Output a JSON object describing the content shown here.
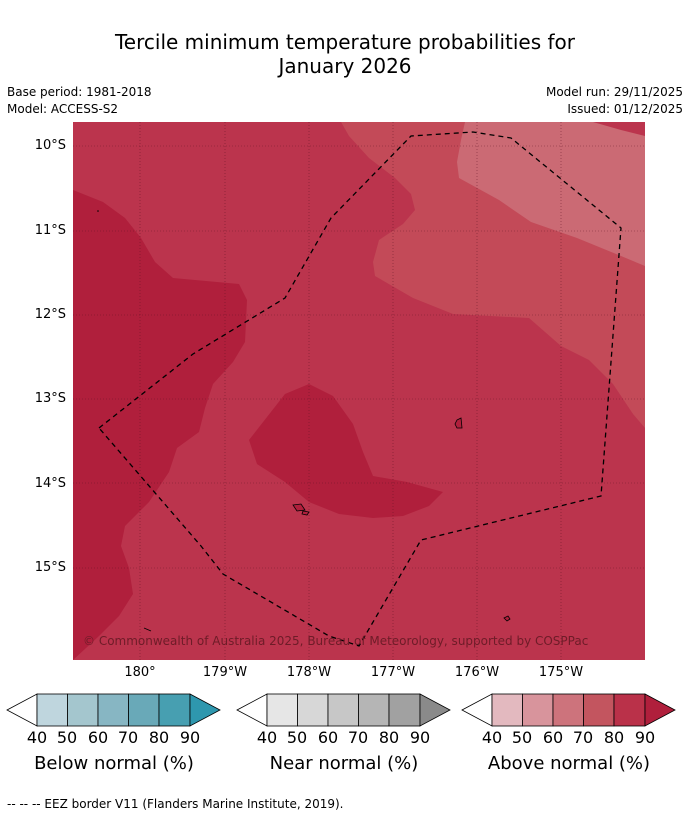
{
  "title": {
    "line1": "Tercile minimum temperature probabilities for",
    "line2": "January 2026"
  },
  "meta": {
    "base_period": "Base period: 1981-2018",
    "model": "Model: ACCESS-S2",
    "model_run": "Model run: 29/11/2025",
    "issued": "Issued: 01/12/2025"
  },
  "map": {
    "copyright": "© Commonwealth of Australia 2025, Bureau of Meteorology, supported by COSPPac",
    "lat_labels": [
      "10°S",
      "11°S",
      "12°S",
      "13°S",
      "14°S",
      "15°S"
    ],
    "lon_labels": [
      "180°",
      "179°W",
      "178°W",
      "177°W",
      "176°W",
      "175°W"
    ],
    "colors": {
      "level80": "#bb344d",
      "level90": "#b01f3c",
      "level70": "#c34a58",
      "level60": "#cb6a74"
    }
  },
  "colorbars": [
    {
      "label": "Below normal (%)",
      "ticks": [
        "40",
        "50",
        "60",
        "70",
        "80",
        "90"
      ],
      "colors": [
        "#bfd6de",
        "#a4c6ce",
        "#87b6c3",
        "#69a9b8",
        "#479fb1",
        "#2e97ae"
      ]
    },
    {
      "label": "Near normal (%)",
      "ticks": [
        "40",
        "50",
        "60",
        "70",
        "80",
        "90"
      ],
      "colors": [
        "#e6e6e6",
        "#d7d7d7",
        "#c7c7c7",
        "#b5b5b5",
        "#a1a1a1",
        "#8a8a8a"
      ]
    },
    {
      "label": "Above normal (%)",
      "ticks": [
        "40",
        "50",
        "60",
        "70",
        "80",
        "90"
      ],
      "colors": [
        "#e3b9bf",
        "#d8949c",
        "#cd737c",
        "#c3555f",
        "#ba3149",
        "#b01f3c"
      ]
    }
  ],
  "footer": "--  --  -- EEZ border V11 (Flanders Marine Institute, 2019)."
}
